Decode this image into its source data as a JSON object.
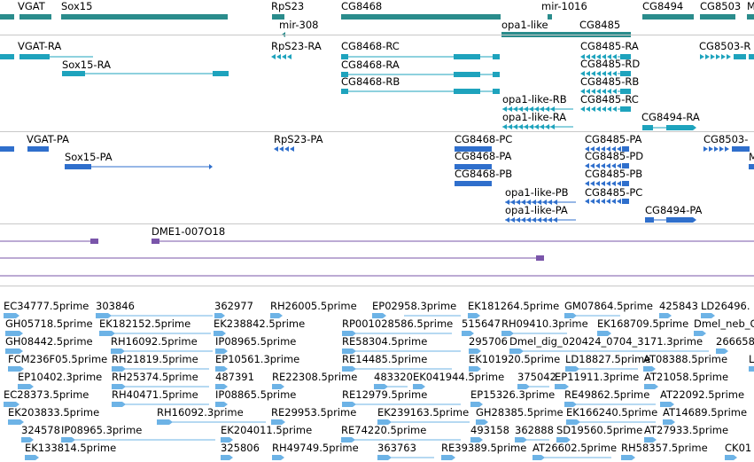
{
  "colors": {
    "gene": "#2a8c8c",
    "transcript": "#1ea3bd",
    "protein": "#2f6fcc",
    "alignment": "#7a55aa",
    "est": "#6db3e6",
    "divider": "#c8c8c8"
  },
  "tracks": {
    "genes": [
      {
        "label": "VGAT"
      },
      {
        "label": "Sox15"
      },
      {
        "label": "RpS23"
      },
      {
        "label": "mir-308"
      },
      {
        "label": "CG8468"
      },
      {
        "label": "mir-1016"
      },
      {
        "label": "opa1-like"
      },
      {
        "label": "CG8485"
      },
      {
        "label": "CG8494"
      },
      {
        "label": "CG8503"
      },
      {
        "label": "M"
      }
    ],
    "transcripts": [
      {
        "label": "VGAT-RA"
      },
      {
        "label": "Sox15-RA"
      },
      {
        "label": "RpS23-RA"
      },
      {
        "label": "CG8468-RC"
      },
      {
        "label": "CG8468-RA"
      },
      {
        "label": "CG8468-RB"
      },
      {
        "label": "CG8485-RA"
      },
      {
        "label": "CG8485-RD"
      },
      {
        "label": "CG8485-RB"
      },
      {
        "label": "opa1-like-RB"
      },
      {
        "label": "CG8485-RC"
      },
      {
        "label": "opa1-like-RA"
      },
      {
        "label": "CG8494-RA"
      },
      {
        "label": "CG8503-R"
      }
    ],
    "proteins": [
      {
        "label": "VGAT-PA"
      },
      {
        "label": "Sox15-PA"
      },
      {
        "label": "RpS23-PA"
      },
      {
        "label": "CG8468-PC"
      },
      {
        "label": "CG8468-PA"
      },
      {
        "label": "CG8468-PB"
      },
      {
        "label": "CG8485-PA"
      },
      {
        "label": "CG8485-PD"
      },
      {
        "label": "CG8485-PB"
      },
      {
        "label": "opa1-like-PB"
      },
      {
        "label": "CG8485-PC"
      },
      {
        "label": "opa1-like-PA"
      },
      {
        "label": "CG8494-PA"
      },
      {
        "label": "CG8503-"
      },
      {
        "label": "M"
      }
    ],
    "alignments": [
      {
        "label": "DME1-007O18"
      }
    ],
    "ests": [
      {
        "label": "EC34777.5prime"
      },
      {
        "label": "303846"
      },
      {
        "label": "362977"
      },
      {
        "label": "RH26005.5prime"
      },
      {
        "label": "EP02958.3prime"
      },
      {
        "label": "EK181264.5prime"
      },
      {
        "label": "GM07864.5prime"
      },
      {
        "label": "425843"
      },
      {
        "label": "LD26496."
      },
      {
        "label": "GH05718.5prime"
      },
      {
        "label": "EK182152.5prime"
      },
      {
        "label": "EK238842.5prime"
      },
      {
        "label": "RP001028586.5prime"
      },
      {
        "label": "515647"
      },
      {
        "label": "RH09410.3prime"
      },
      {
        "label": "EK168709.5prime"
      },
      {
        "label": "Dmel_neb_C"
      },
      {
        "label": "GH08442.5prime"
      },
      {
        "label": "RH16092.5prime"
      },
      {
        "label": "IP08965.5prime"
      },
      {
        "label": "RE58304.5prime"
      },
      {
        "label": "295706"
      },
      {
        "label": "Dmel_dig_020424_0704_3171.3prime"
      },
      {
        "label": "266658"
      },
      {
        "label": "FCM236F05.5prime"
      },
      {
        "label": "RH21819.5prime"
      },
      {
        "label": "EP10561.3prime"
      },
      {
        "label": "RE14485.5prime"
      },
      {
        "label": "EK101920.5prime"
      },
      {
        "label": "LD18827.5prime"
      },
      {
        "label": "AT08388.5prime"
      },
      {
        "label": "L"
      },
      {
        "label": "EP10402.3prime"
      },
      {
        "label": "RH25374.5prime"
      },
      {
        "label": "487391"
      },
      {
        "label": "RE22308.5prime"
      },
      {
        "label": "483320"
      },
      {
        "label": "EK041944.5prime"
      },
      {
        "label": "375042"
      },
      {
        "label": "EP11911.3prime"
      },
      {
        "label": "AT21058.5prime"
      },
      {
        "label": "EC28373.5prime"
      },
      {
        "label": "RH40471.5prime"
      },
      {
        "label": "IP08865.5prime"
      },
      {
        "label": "RE12979.5prime"
      },
      {
        "label": "EP15326.3prime"
      },
      {
        "label": "RE49862.5prime"
      },
      {
        "label": "AT22092.5prime"
      },
      {
        "label": "EK203833.5prime"
      },
      {
        "label": "RH16092.3prime"
      },
      {
        "label": "RE29953.5prime"
      },
      {
        "label": "EK239163.5prime"
      },
      {
        "label": "GH28385.5prime"
      },
      {
        "label": "EK166240.5prime"
      },
      {
        "label": "AT14689.5prime"
      },
      {
        "label": "324578"
      },
      {
        "label": "IP08965.3prime"
      },
      {
        "label": "EK204011.5prime"
      },
      {
        "label": "RE74220.5prime"
      },
      {
        "label": "493158"
      },
      {
        "label": "362888"
      },
      {
        "label": "SD19560.5prime"
      },
      {
        "label": "AT27933.5prime"
      },
      {
        "label": "EK133814.5prime"
      },
      {
        "label": "325806"
      },
      {
        "label": "RH49749.5prime"
      },
      {
        "label": "363763"
      },
      {
        "label": "RE39389.5prime"
      },
      {
        "label": "AT26602.5prime"
      },
      {
        "label": "RH58357.5prime"
      },
      {
        "label": "CK01"
      }
    ]
  }
}
